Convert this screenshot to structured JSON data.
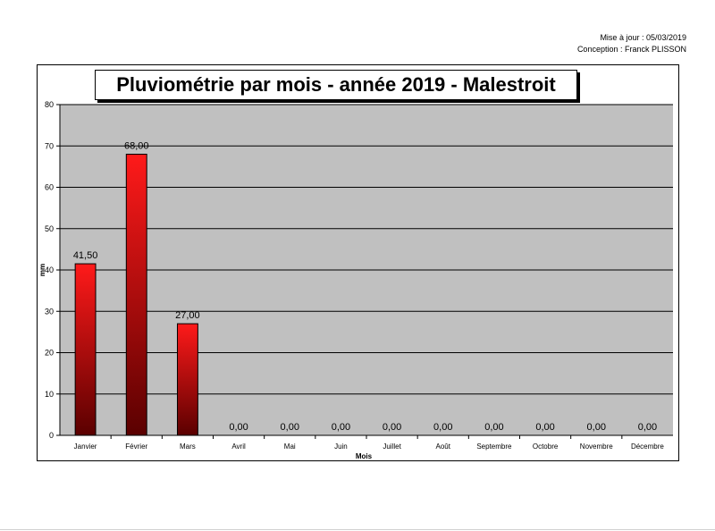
{
  "meta": {
    "update": "Mise à jour : 05/03/2019",
    "author": "Conception : Franck PLISSON"
  },
  "chart_data": {
    "type": "bar",
    "title": "Pluviométrie par mois - année 2019 - Malestroit",
    "xlabel": "Mois",
    "ylabel": "mm",
    "ylim": [
      0,
      80
    ],
    "yticks": [
      0,
      10,
      20,
      30,
      40,
      50,
      60,
      70,
      80
    ],
    "categories": [
      "Janvier",
      "Février",
      "Mars",
      "Avril",
      "Mai",
      "Juin",
      "Juillet",
      "Août",
      "Septembre",
      "Octobre",
      "Novembre",
      "Décembre"
    ],
    "values": [
      41.5,
      68.0,
      27.0,
      0,
      0,
      0,
      0,
      0,
      0,
      0,
      0,
      0
    ],
    "value_labels": [
      "41,50",
      "68,00",
      "27,00",
      "0,00",
      "0,00",
      "0,00",
      "0,00",
      "0,00",
      "0,00",
      "0,00",
      "0,00",
      "0,00"
    ],
    "grid": true,
    "colors": {
      "plot_bg": "#c0c0c0",
      "bar_top": "#ff1a1a",
      "bar_bottom": "#5a0000",
      "grid": "#000000"
    }
  }
}
